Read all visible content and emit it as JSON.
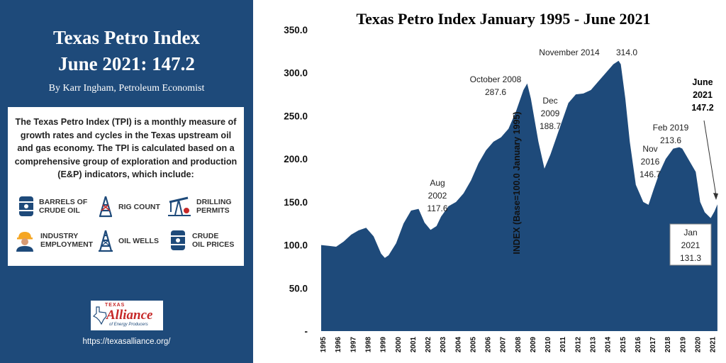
{
  "panel": {
    "title": "Texas Petro Index",
    "subtitle": "June 2021: 147.2",
    "byline": "By Karr Ingham, Petroleum Economist",
    "description": "The Texas Petro Index (TPI) is a monthly measure of growth rates and cycles in the Texas upstream oil and gas economy. The TPI is calculated based on a comprehensive group of exploration and production (E&P) indicators, which include:",
    "indicators": [
      {
        "label": "BARRELS OF\nCRUDE OIL",
        "icon": "barrel-icon"
      },
      {
        "label": "RIG COUNT",
        "icon": "rig-icon"
      },
      {
        "label": "DRILLING\nPERMITS",
        "icon": "pumpjack-icon"
      },
      {
        "label": "INDUSTRY\nEMPLOYMENT",
        "icon": "worker-icon"
      },
      {
        "label": "OIL WELLS",
        "icon": "derrick-icon"
      },
      {
        "label": "CRUDE\nOIL PRICES",
        "icon": "barrel-price-icon"
      }
    ],
    "logo": {
      "top": "TEXAS",
      "main": "Alliance",
      "sub": "of Energy Producers"
    },
    "url": "https://texasalliance.org/"
  },
  "colors": {
    "panel_bg": "#1e4a7a",
    "area_fill": "#1e4a7a",
    "logo_red": "#c62828"
  },
  "chart_data": {
    "type": "area",
    "title": "Texas Petro Index January 1995 - June 2021",
    "ylabel": "INDEX (Base=100.0 January 1995)",
    "xlabel": "",
    "ylim": [
      0,
      350
    ],
    "yticks": [
      "-",
      "50.0",
      "100.0",
      "150.0",
      "200.0",
      "250.0",
      "300.0",
      "350.0"
    ],
    "xticks": [
      "1995",
      "1996",
      "1997",
      "1998",
      "1999",
      "2000",
      "2001",
      "2002",
      "2003",
      "2004",
      "2005",
      "2006",
      "2007",
      "2008",
      "2009",
      "2010",
      "2011",
      "2012",
      "2013",
      "2014",
      "2015",
      "2016",
      "2017",
      "2018",
      "2019",
      "2020",
      "2021"
    ],
    "grid": false,
    "series": [
      {
        "x": [
          1995.0,
          1995.5,
          1996.0,
          1996.5,
          1997.0,
          1997.5,
          1998.0,
          1998.5,
          1999.0,
          1999.25,
          1999.5,
          2000.0,
          2000.5,
          2001.0,
          2001.5,
          2001.9,
          2002.3,
          2002.7,
          2003.0,
          2003.5,
          2004.0,
          2004.5,
          2005.0,
          2005.5,
          2006.0,
          2006.5,
          2007.0,
          2007.5,
          2008.0,
          2008.5,
          2008.75,
          2009.0,
          2009.5,
          2009.9,
          2010.3,
          2010.7,
          2011.0,
          2011.5,
          2012.0,
          2012.5,
          2013.0,
          2013.5,
          2014.0,
          2014.5,
          2014.85,
          2015.0,
          2015.3,
          2015.6,
          2016.0,
          2016.5,
          2016.85,
          2017.2,
          2017.6,
          2018.0,
          2018.5,
          2018.9,
          2019.1,
          2019.5,
          2020.0,
          2020.3,
          2020.6,
          2021.0,
          2021.25,
          2021.45
        ],
        "y": [
          100.0,
          99.0,
          98.0,
          104.0,
          112.0,
          117.0,
          120.0,
          110.0,
          90.0,
          85.0,
          88.0,
          102.0,
          125.0,
          140.0,
          142.0,
          126.0,
          117.6,
          122.0,
          133.0,
          145.0,
          150.0,
          160.0,
          175.0,
          195.0,
          210.0,
          220.0,
          225.0,
          235.0,
          255.0,
          280.0,
          287.6,
          270.0,
          220.0,
          188.7,
          205.0,
          225.0,
          240.0,
          265.0,
          275.0,
          276.0,
          280.0,
          290.0,
          300.0,
          310.0,
          314.0,
          310.0,
          270.0,
          220.0,
          170.0,
          150.0,
          146.7,
          165.0,
          185.0,
          200.0,
          212.0,
          213.6,
          212.0,
          200.0,
          185.0,
          150.0,
          138.0,
          131.3,
          139.0,
          147.2
        ]
      }
    ],
    "annotations": [
      {
        "text": [
          "Aug",
          "2002",
          "117.6"
        ]
      },
      {
        "text": [
          "October 2008",
          "287.6"
        ]
      },
      {
        "text": [
          "Dec",
          "2009",
          "188.7"
        ]
      },
      {
        "text": [
          "November 2014",
          "314.0"
        ]
      },
      {
        "text": [
          "Nov",
          "2016",
          "146.7"
        ]
      },
      {
        "text": [
          "Feb 2019",
          "213.6"
        ]
      },
      {
        "text": [
          "Jan",
          "2021",
          "131.3"
        ]
      },
      {
        "text": [
          "June",
          "2021",
          "147.2"
        ]
      }
    ]
  }
}
